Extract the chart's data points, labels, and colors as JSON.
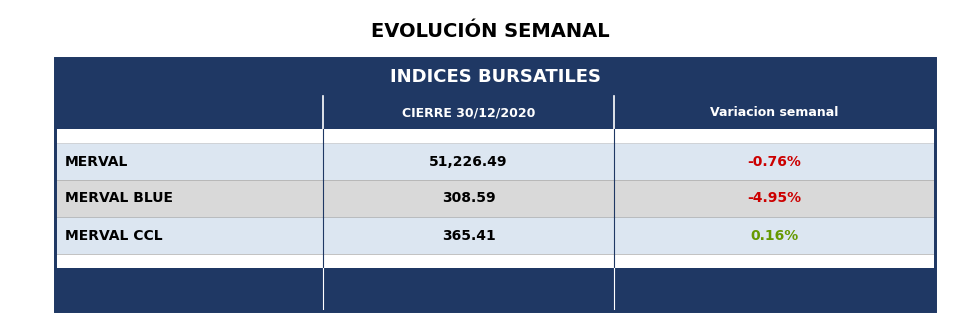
{
  "title": "EVOLUCIÓN SEMANAL",
  "table_title": "INDICES BURSATILES",
  "col_headers": [
    "",
    "CIERRE 30/12/2020",
    "Variacion semanal"
  ],
  "rows": [
    [
      "MERVAL",
      "51,226.49",
      "-0.76%"
    ],
    [
      "MERVAL BLUE",
      "308.59",
      "-4.95%"
    ],
    [
      "MERVAL CCL",
      "365.41",
      "0.16%"
    ]
  ],
  "variation_colors": [
    "#cc0000",
    "#cc0000",
    "#669900"
  ],
  "row_bg_colors": [
    "#dce6f1",
    "#d9d9d9",
    "#dce6f1"
  ],
  "header_bg": "#1f3864",
  "header_text_color": "#ffffff",
  "outer_border_color": "#1f3864",
  "title_fontsize": 14,
  "table_title_fontsize": 13,
  "col_header_fontsize": 9,
  "row_fontsize": 10,
  "background_color": "#ffffff",
  "fig_width": 9.8,
  "fig_height": 3.19,
  "dpi": 100
}
